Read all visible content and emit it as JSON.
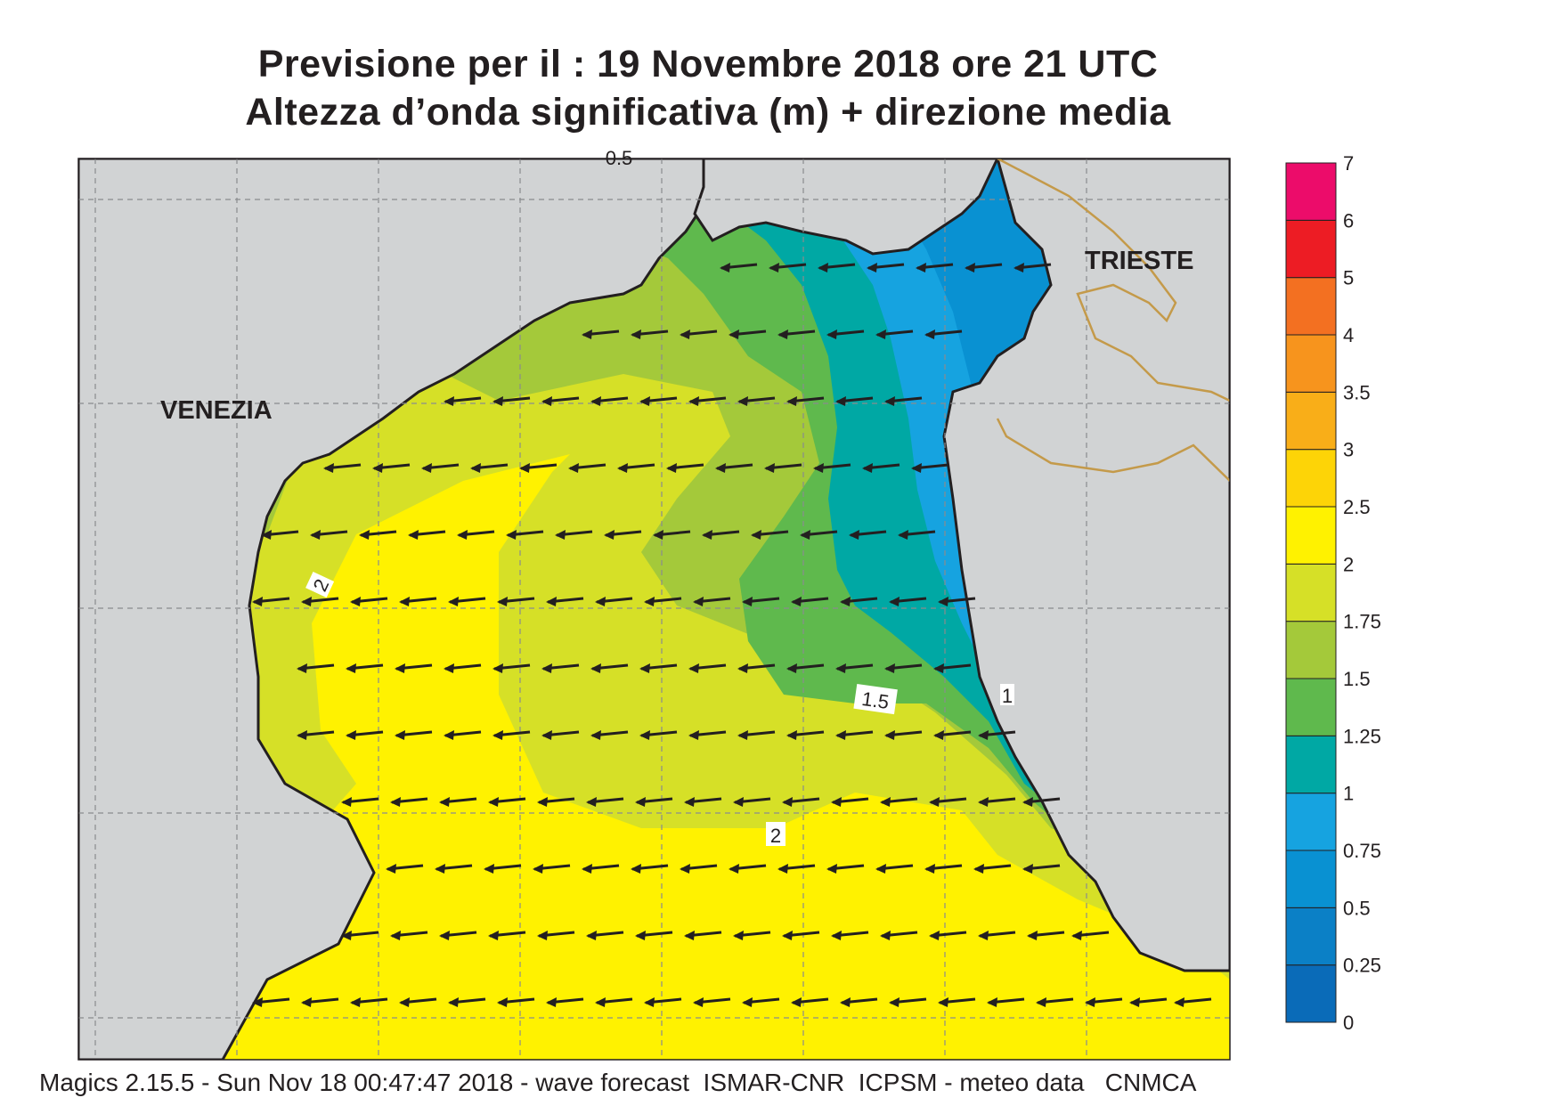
{
  "title": {
    "line1": "Previsione per il  :  19 Novembre  2018   ore 21 UTC",
    "line2": "Altezza d’onda significativa (m) + direzione media"
  },
  "map": {
    "labels": {
      "venezia": "VENEZIA",
      "trieste": "TRIESTE"
    },
    "contour_labels": [
      "2",
      "1.5",
      "2",
      "1",
      "0.5"
    ],
    "arrow_direction": "west"
  },
  "colorbar": {
    "levels": [
      {
        "value": "0",
        "color": "#0a6bb8"
      },
      {
        "value": "0.25",
        "color": "#0b80c6"
      },
      {
        "value": "0.5",
        "color": "#0991d2"
      },
      {
        "value": "0.75",
        "color": "#16a3e0"
      },
      {
        "value": "1",
        "color": "#00a8a4"
      },
      {
        "value": "1.25",
        "color": "#5fb94d"
      },
      {
        "value": "1.5",
        "color": "#a4c93a"
      },
      {
        "value": "1.75",
        "color": "#d6e027"
      },
      {
        "value": "2",
        "color": "#fff200"
      },
      {
        "value": "2.5",
        "color": "#fdd407"
      },
      {
        "value": "3",
        "color": "#f9ae18"
      },
      {
        "value": "3.5",
        "color": "#f7941d"
      },
      {
        "value": "4",
        "color": "#f37021"
      },
      {
        "value": "5",
        "color": "#ed1c24"
      },
      {
        "value": "6",
        "color": "#ec0c6a"
      }
    ],
    "top_label": "7"
  },
  "footer": "Magics 2.15.5 - Sun Nov 18 00:47:47 2018 - wave forecast  ISMAR-CNR  ICPSM - meteo data   CNMCA"
}
